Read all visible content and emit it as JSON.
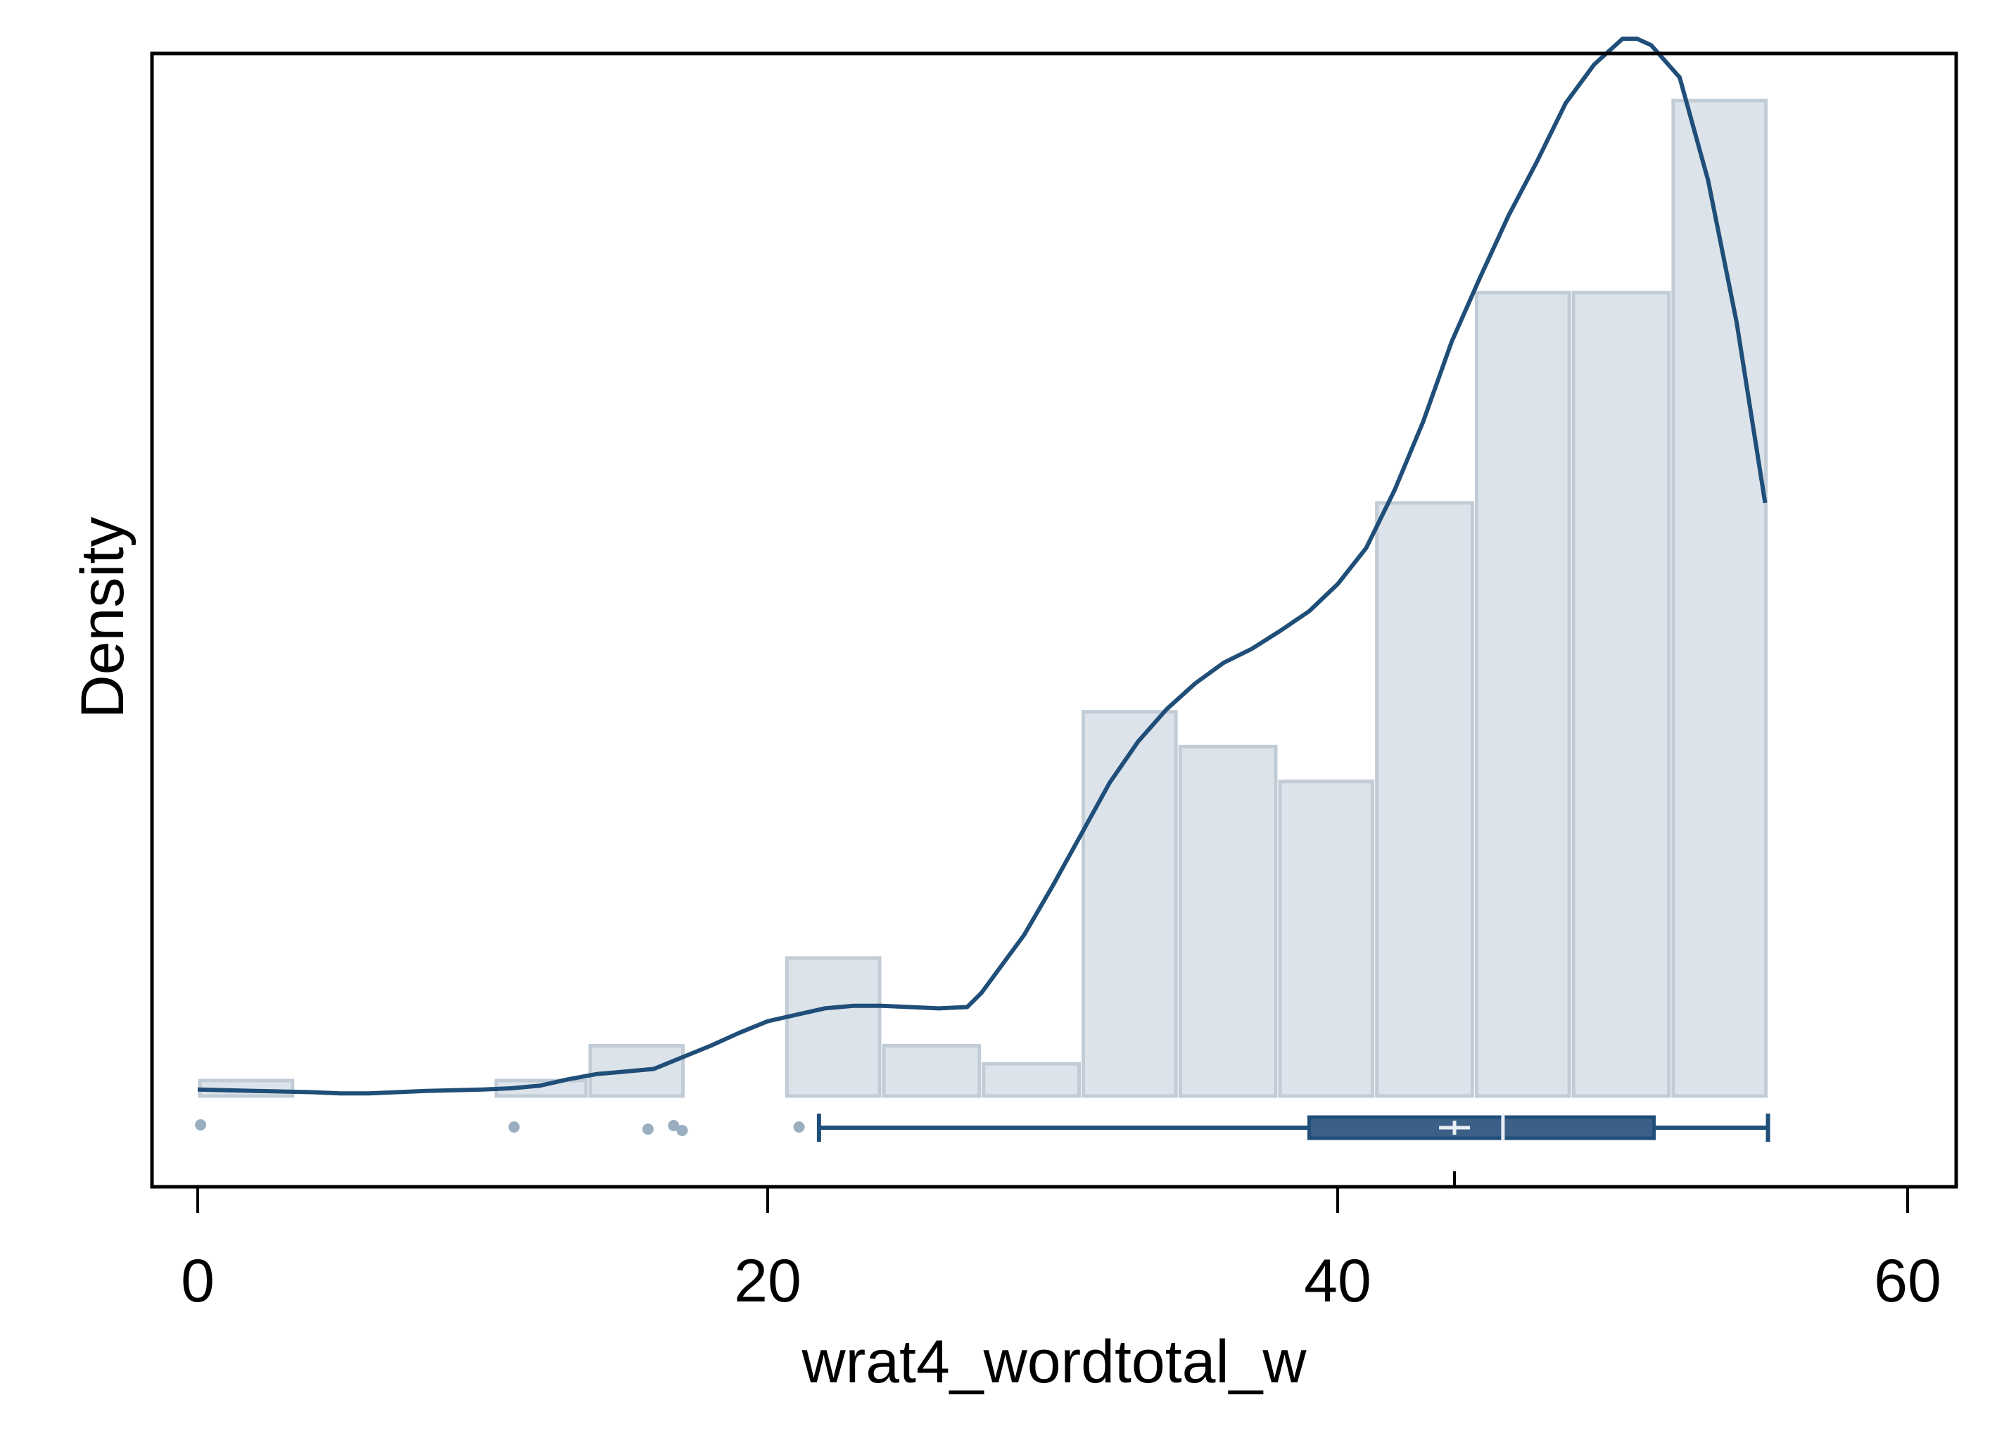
{
  "chart_data": {
    "type": "histogram",
    "title": "",
    "xlabel": "wrat4_wordtotal_w",
    "ylabel": "Density",
    "xlim": [
      -1.5,
      61.5
    ],
    "x_ticks": [
      0,
      20,
      40,
      60
    ],
    "y_ticks_shown": false,
    "grid": false,
    "bar_color": "#dce3ea",
    "bar_edge_color": "#c2ccd6",
    "line_color": "#1f4e79",
    "outlier_color": "#9aaebf",
    "box_fill_color": "#3b5f86",
    "histogram": {
      "bins": [
        {
          "x0": 0,
          "x1": 3.4,
          "height": 0.012
        },
        {
          "x0": 10.4,
          "x1": 13.7,
          "height": 0.012
        },
        {
          "x0": 13.7,
          "x1": 17.1,
          "height": 0.039
        },
        {
          "x0": 20.6,
          "x1": 24,
          "height": 0.107
        },
        {
          "x0": 24,
          "x1": 27.5,
          "height": 0.039
        },
        {
          "x0": 27.5,
          "x1": 31,
          "height": 0.025
        },
        {
          "x0": 31,
          "x1": 34.4,
          "height": 0.298
        },
        {
          "x0": 34.4,
          "x1": 37.9,
          "height": 0.271
        },
        {
          "x0": 37.9,
          "x1": 41.3,
          "height": 0.244
        },
        {
          "x0": 41.3,
          "x1": 44.8,
          "height": 0.46
        },
        {
          "x0": 44.8,
          "x1": 48.2,
          "height": 0.623
        },
        {
          "x0": 48.2,
          "x1": 51.7,
          "height": 0.623
        },
        {
          "x0": 51.7,
          "x1": 55.1,
          "height": 0.772
        }
      ]
    },
    "density_curve": {
      "x": [
        0,
        2,
        4,
        5,
        6,
        8,
        10,
        11,
        12,
        13,
        14,
        15,
        16,
        17,
        18,
        19,
        20,
        21,
        22,
        23,
        24,
        25,
        26,
        27,
        27.5,
        28,
        29,
        30,
        31,
        32,
        33,
        34,
        35,
        36,
        37,
        38,
        39,
        40,
        41,
        42,
        43,
        44,
        45,
        46,
        47,
        48,
        49,
        50,
        50.5,
        51,
        52,
        53,
        54,
        55
      ],
      "y": [
        0.005,
        0.004,
        0.003,
        0.002,
        0.002,
        0.004,
        0.005,
        0.006,
        0.008,
        0.013,
        0.017,
        0.019,
        0.021,
        0.03,
        0.039,
        0.049,
        0.058,
        0.063,
        0.068,
        0.07,
        0.07,
        0.069,
        0.068,
        0.069,
        0.08,
        0.095,
        0.125,
        0.163,
        0.203,
        0.243,
        0.275,
        0.3,
        0.32,
        0.336,
        0.347,
        0.361,
        0.376,
        0.397,
        0.425,
        0.47,
        0.523,
        0.585,
        0.635,
        0.683,
        0.725,
        0.77,
        0.8,
        0.82,
        0.82,
        0.815,
        0.79,
        0.71,
        0.6,
        0.46
      ]
    },
    "box_plot": {
      "whisker_low": 21.8,
      "q1": 39,
      "median": 45.8,
      "mean": 44.1,
      "q3": 51.1,
      "whisker_high": 55.1,
      "outliers": [
        0.1,
        11.1,
        15.8,
        16.7,
        17.0,
        21.1
      ]
    }
  }
}
